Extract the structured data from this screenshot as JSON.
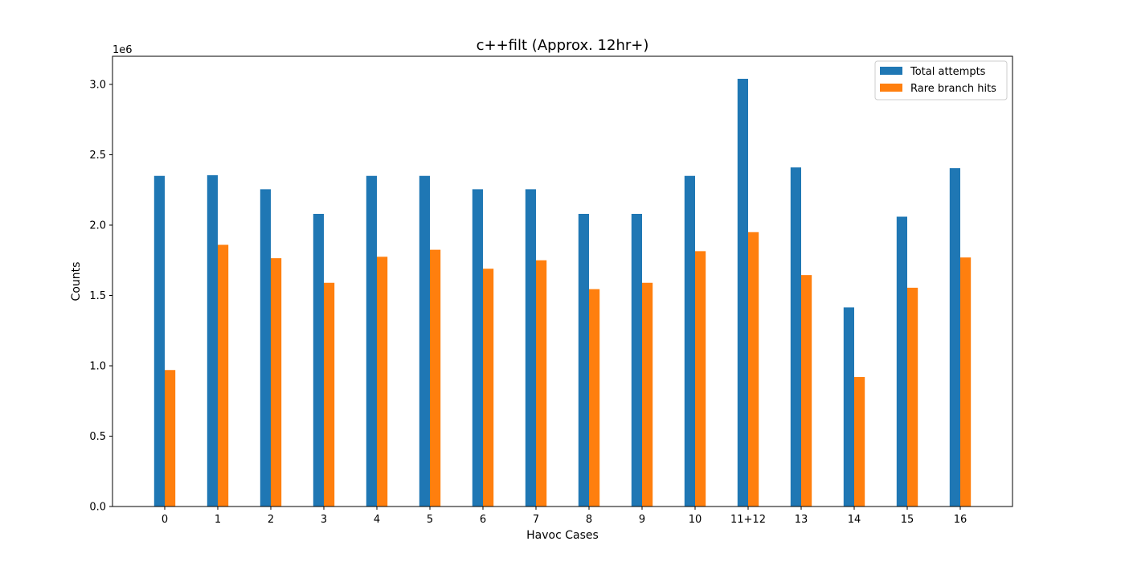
{
  "chart_data": {
    "type": "bar",
    "title": "c++filt (Approx. 12hr+)",
    "xlabel": "Havoc Cases",
    "ylabel": "Counts",
    "y_scale_label": "1e6",
    "ylim": [
      0,
      3200000
    ],
    "yticks": [
      0,
      500000,
      1000000,
      1500000,
      2000000,
      2500000,
      3000000
    ],
    "ytick_labels": [
      "0.0",
      "0.5",
      "1.0",
      "1.5",
      "2.0",
      "2.5",
      "3.0"
    ],
    "categories": [
      "0",
      "1",
      "2",
      "3",
      "4",
      "5",
      "6",
      "7",
      "8",
      "9",
      "10",
      "11+12",
      "13",
      "14",
      "15",
      "16"
    ],
    "series": [
      {
        "name": "Total attempts",
        "color": "#1f77b4",
        "values": [
          2350000,
          2355000,
          2255000,
          2080000,
          2350000,
          2350000,
          2255000,
          2255000,
          2080000,
          2080000,
          2350000,
          3040000,
          2410000,
          1415000,
          2060000,
          2405000
        ]
      },
      {
        "name": "Rare branch hits",
        "color": "#ff7f0e",
        "values": [
          970000,
          1860000,
          1765000,
          1590000,
          1775000,
          1825000,
          1690000,
          1750000,
          1545000,
          1590000,
          1815000,
          1950000,
          1645000,
          920000,
          1555000,
          1770000
        ]
      }
    ],
    "legend_position": "top-right",
    "grid": false
  }
}
